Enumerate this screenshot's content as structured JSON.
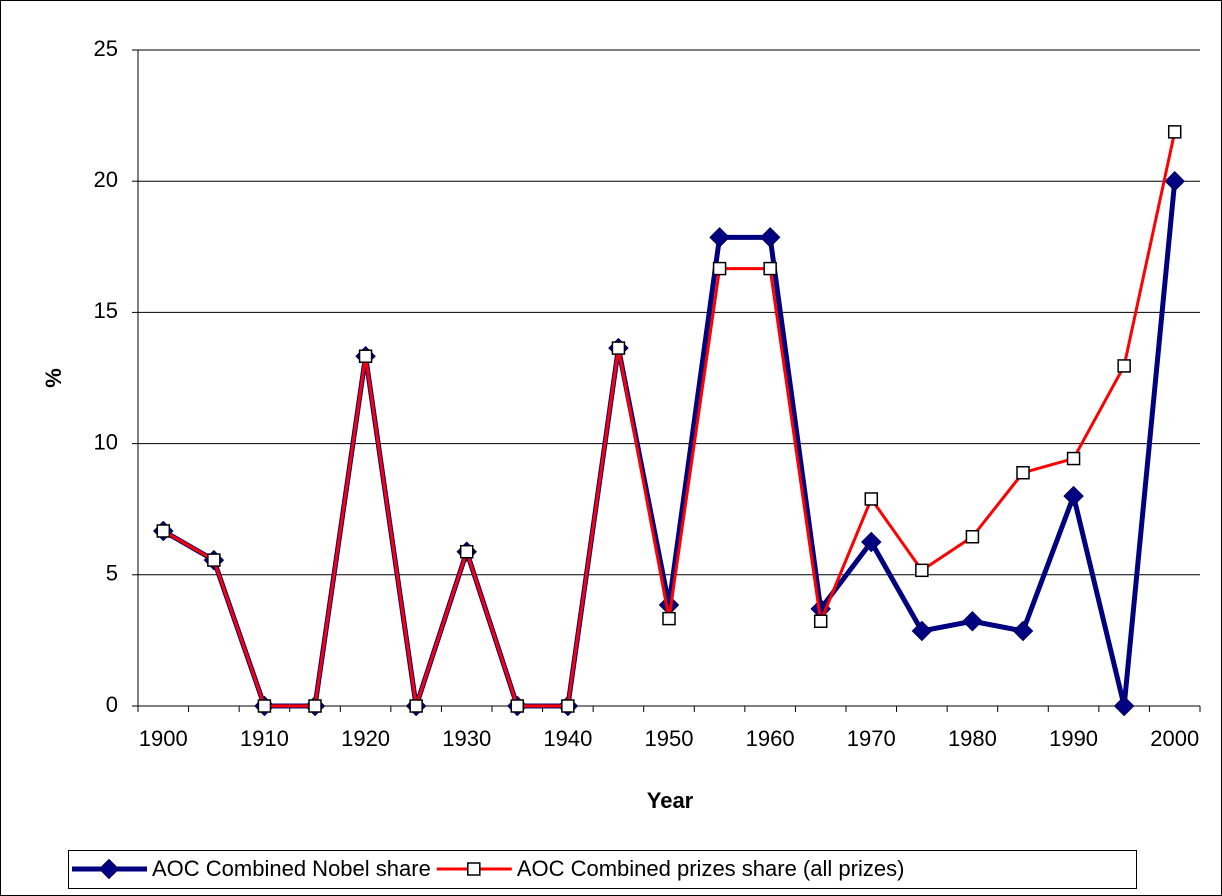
{
  "chart_data": {
    "type": "line",
    "x_label": "Year",
    "y_label": "%",
    "categories": [
      "1900",
      null,
      "1910",
      null,
      "1920",
      null,
      "1930",
      null,
      "1940",
      null,
      "1950",
      null,
      "1960",
      null,
      "1970",
      null,
      "1980",
      null,
      "1990",
      null,
      "2000"
    ],
    "series": [
      {
        "name": "AOC Combined Nobel share",
        "color": "#000080",
        "marker": "diamond",
        "values": [
          6.67,
          5.56,
          0,
          0,
          13.33,
          0,
          5.88,
          0,
          0,
          13.64,
          3.85,
          17.86,
          17.86,
          3.7,
          6.25,
          2.86,
          3.23,
          2.86,
          8.0,
          0,
          20
        ]
      },
      {
        "name": "AOC Combined prizes share (all prizes)",
        "color": "#ff0000",
        "marker": "square",
        "values": [
          6.67,
          5.56,
          0,
          0,
          13.33,
          0,
          5.88,
          0,
          0,
          13.64,
          3.33,
          16.67,
          16.67,
          3.23,
          7.89,
          5.17,
          6.45,
          8.89,
          9.43,
          12.96,
          21.88
        ]
      }
    ],
    "ylim": [
      0,
      25
    ],
    "yticks": [
      0,
      5,
      10,
      15,
      20,
      25
    ],
    "grid": true,
    "legend": "bottom"
  }
}
